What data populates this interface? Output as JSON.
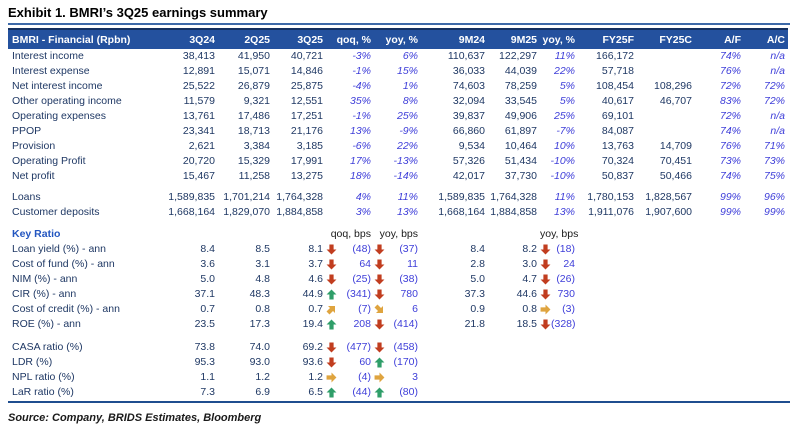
{
  "title": "Exhibit 1. BMRI’s 3Q25 earnings summary",
  "source": "Source: Company, BRIDS Estimates, Bloomberg",
  "colors": {
    "header_bg": "#24519e",
    "number_text": "#1f3864",
    "percent_text": "#3e3ed9",
    "key_ratio_label": "#2356c0",
    "arrow_red": "#c13d1f",
    "arrow_green": "#2f9e69",
    "arrow_yellow": "#dfa43f"
  },
  "main_table": {
    "header": [
      "BMRI - Financial (Rpbn)",
      "3Q24",
      "2Q25",
      "3Q25",
      "qoq, %",
      "yoy, %",
      "9M24",
      "9M25",
      "yoy, %",
      "FY25F",
      "FY25C",
      "A/F",
      "A/C"
    ],
    "rows": [
      {
        "label": "Interest income",
        "cells": [
          "38,413",
          "41,950",
          "40,721",
          "-3%",
          "6%",
          "110,637",
          "122,297",
          "11%",
          "166,172",
          "",
          "74%",
          "n/a"
        ]
      },
      {
        "label": "Interest expense",
        "cells": [
          "12,891",
          "15,071",
          "14,846",
          "-1%",
          "15%",
          "36,033",
          "44,039",
          "22%",
          "57,718",
          "",
          "76%",
          "n/a"
        ]
      },
      {
        "label": "Net interest income",
        "cells": [
          "25,522",
          "26,879",
          "25,875",
          "-4%",
          "1%",
          "74,603",
          "78,259",
          "5%",
          "108,454",
          "108,296",
          "72%",
          "72%"
        ]
      },
      {
        "label": "Other operating income",
        "cells": [
          "11,579",
          "9,321",
          "12,551",
          "35%",
          "8%",
          "32,094",
          "33,545",
          "5%",
          "40,617",
          "46,707",
          "83%",
          "72%"
        ]
      },
      {
        "label": "Operating expenses",
        "cells": [
          "13,761",
          "17,486",
          "17,251",
          "-1%",
          "25%",
          "39,837",
          "49,906",
          "25%",
          "69,101",
          "",
          "72%",
          "n/a"
        ]
      },
      {
        "label": "PPOP",
        "cells": [
          "23,341",
          "18,713",
          "21,176",
          "13%",
          "-9%",
          "66,860",
          "61,897",
          "-7%",
          "84,087",
          "",
          "74%",
          "n/a"
        ]
      },
      {
        "label": "Provision",
        "cells": [
          "2,621",
          "3,384",
          "3,185",
          "-6%",
          "22%",
          "9,534",
          "10,464",
          "10%",
          "13,763",
          "14,709",
          "76%",
          "71%"
        ]
      },
      {
        "label": "Operating Profit",
        "cells": [
          "20,720",
          "15,329",
          "17,991",
          "17%",
          "-13%",
          "57,326",
          "51,434",
          "-10%",
          "70,324",
          "70,451",
          "73%",
          "73%"
        ]
      },
      {
        "label": "Net profit",
        "cells": [
          "15,467",
          "11,258",
          "13,275",
          "18%",
          "-14%",
          "42,017",
          "37,730",
          "-10%",
          "50,837",
          "50,466",
          "74%",
          "75%"
        ]
      }
    ],
    "balance_rows": [
      {
        "label": "Loans",
        "cells": [
          "1,589,835",
          "1,701,214",
          "1,764,328",
          "4%",
          "11%",
          "1,589,835",
          "1,764,328",
          "11%",
          "1,780,153",
          "1,828,567",
          "99%",
          "96%"
        ]
      },
      {
        "label": "Customer deposits",
        "cells": [
          "1,668,164",
          "1,829,070",
          "1,884,858",
          "3%",
          "13%",
          "1,668,164",
          "1,884,858",
          "13%",
          "1,911,076",
          "1,907,600",
          "99%",
          "99%"
        ]
      }
    ]
  },
  "key_ratio": {
    "section_label": "Key Ratio",
    "qoq_bps_label": "qoq, bps",
    "yoy_bps_label": "yoy, bps",
    "yoy_bps_label_9m": "yoy, bps",
    "rows": [
      {
        "label": "Loan yield (%) - ann",
        "q324": "8.4",
        "q225": "8.5",
        "q325": "8.1",
        "qoq_icon": "down-red",
        "qoq": "(48)",
        "yoy_icon": "down-red",
        "yoy": "(37)",
        "m24": "8.4",
        "m25": "8.2",
        "yoy9m_icon": "down-red",
        "yoy9m": "(18)"
      },
      {
        "label": "Cost of fund (%) - ann",
        "q324": "3.6",
        "q225": "3.1",
        "q325": "3.7",
        "qoq_icon": "down-red",
        "qoq": "64",
        "yoy_icon": "down-red",
        "yoy": "11",
        "m24": "2.8",
        "m25": "3.0",
        "yoy9m_icon": "down-red",
        "yoy9m": "24"
      },
      {
        "label": "NIM (%) - ann",
        "q324": "5.0",
        "q225": "4.8",
        "q325": "4.6",
        "qoq_icon": "down-red",
        "qoq": "(25)",
        "yoy_icon": "down-red",
        "yoy": "(38)",
        "m24": "5.0",
        "m25": "4.7",
        "yoy9m_icon": "down-red",
        "yoy9m": "(26)"
      },
      {
        "label": "CIR (%) - ann",
        "q324": "37.1",
        "q225": "48.3",
        "q325": "44.9",
        "qoq_icon": "up-green",
        "qoq": "(341)",
        "yoy_icon": "down-red",
        "yoy": "780",
        "m24": "37.3",
        "m25": "44.6",
        "yoy9m_icon": "down-red",
        "yoy9m": "730"
      },
      {
        "label": "Cost of credit (%) - ann",
        "q324": "0.7",
        "q225": "0.8",
        "q325": "0.7",
        "qoq_icon": "up-right-yellow",
        "qoq": "(7)",
        "yoy_icon": "down-right-yellow",
        "yoy": "6",
        "m24": "0.9",
        "m25": "0.8",
        "yoy9m_icon": "right-yellow",
        "yoy9m": "(3)"
      },
      {
        "label": "ROE (%) - ann",
        "q324": "23.5",
        "q225": "17.3",
        "q325": "19.4",
        "qoq_icon": "up-green",
        "qoq": "208",
        "yoy_icon": "down-red",
        "yoy": "(414)",
        "m24": "21.8",
        "m25": "18.5",
        "yoy9m_icon": "down-red",
        "yoy9m": "(328)"
      }
    ],
    "rows2": [
      {
        "label": "CASA ratio (%)",
        "q324": "73.8",
        "q225": "74.0",
        "q325": "69.2",
        "qoq_icon": "down-red",
        "qoq": "(477)",
        "yoy_icon": "down-red",
        "yoy": "(458)"
      },
      {
        "label": "LDR (%)",
        "q324": "95.3",
        "q225": "93.0",
        "q325": "93.6",
        "qoq_icon": "down-red",
        "qoq": "60",
        "yoy_icon": "up-green",
        "yoy": "(170)"
      },
      {
        "label": "NPL ratio (%)",
        "q324": "1.1",
        "q225": "1.2",
        "q325": "1.2",
        "qoq_icon": "right-yellow",
        "qoq": "(4)",
        "yoy_icon": "right-yellow",
        "yoy": "3"
      },
      {
        "label": "LaR ratio (%)",
        "q324": "7.3",
        "q225": "6.9",
        "q325": "6.5",
        "qoq_icon": "up-green",
        "qoq": "(44)",
        "yoy_icon": "up-green",
        "yoy": "(80)"
      }
    ]
  }
}
